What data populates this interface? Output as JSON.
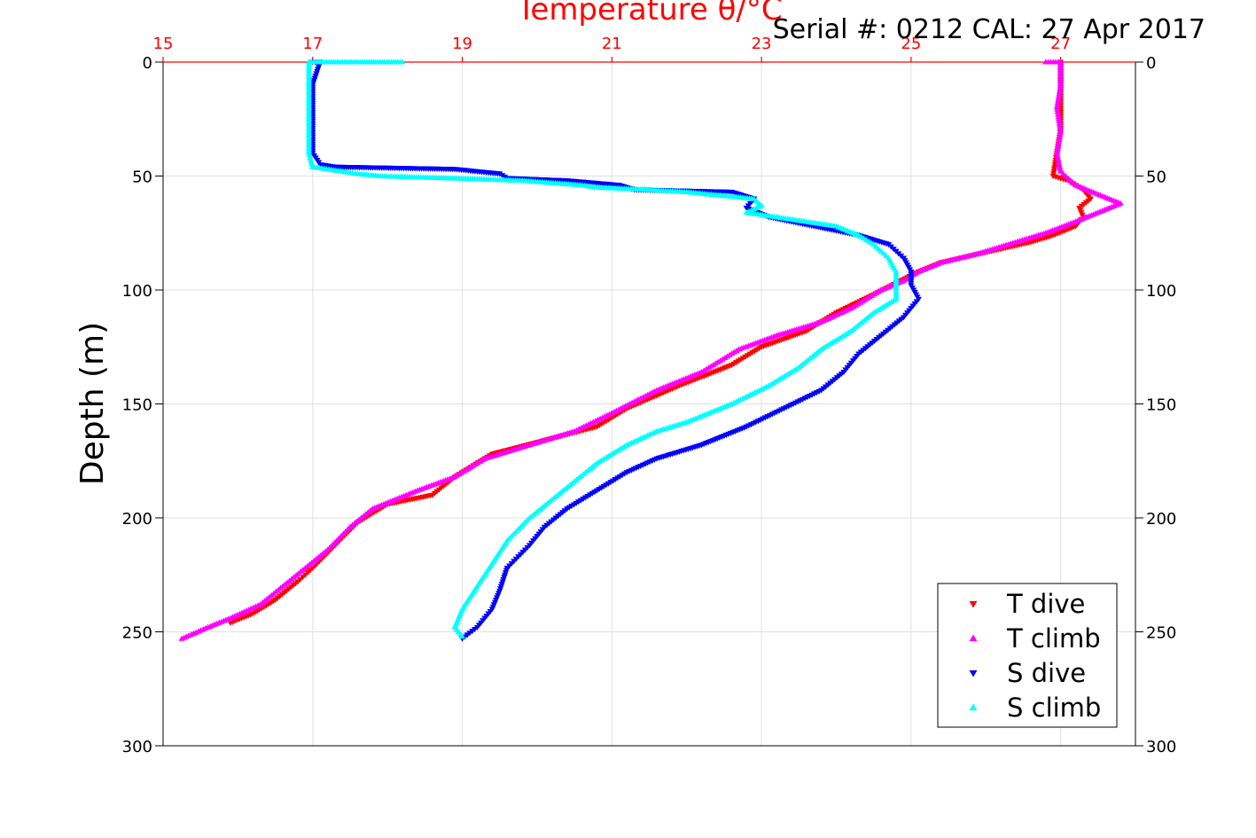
{
  "chart_data": {
    "type": "scatter",
    "title": "Temperature θ/°C",
    "header": "Serial #: 0212  CAL: 27 Apr 2017",
    "xlabel_top": "Temperature θ/°C",
    "ylabel": "Depth (m)",
    "xlim": [
      15,
      28
    ],
    "ylim": [
      0,
      300
    ],
    "y_reversed": true,
    "x_ticks": [
      15,
      17,
      19,
      21,
      23,
      25,
      27
    ],
    "x_tick_labels": [
      "15",
      "17",
      "19",
      "21",
      "23",
      "25",
      "27"
    ],
    "y_ticks": [
      0,
      50,
      100,
      150,
      200,
      250,
      300
    ],
    "y_tick_labels": [
      "0",
      "50",
      "100",
      "150",
      "200",
      "250",
      "300"
    ],
    "grid": true,
    "legend_position": "bottom-right",
    "series": [
      {
        "name": "T dive",
        "marker": "triangle-down",
        "color": "#ff0000",
        "points": [
          [
            27.0,
            0
          ],
          [
            27.0,
            10
          ],
          [
            27.0,
            20
          ],
          [
            27.0,
            30
          ],
          [
            26.95,
            40
          ],
          [
            26.9,
            50
          ],
          [
            27.1,
            52
          ],
          [
            27.3,
            56
          ],
          [
            27.4,
            60
          ],
          [
            27.25,
            64
          ],
          [
            27.3,
            68
          ],
          [
            27.2,
            72
          ],
          [
            26.9,
            76
          ],
          [
            26.6,
            79
          ],
          [
            26.2,
            82
          ],
          [
            25.8,
            85
          ],
          [
            25.4,
            88
          ],
          [
            25.1,
            92
          ],
          [
            24.8,
            97
          ],
          [
            24.5,
            102
          ],
          [
            24.0,
            110
          ],
          [
            23.6,
            118
          ],
          [
            23.0,
            125
          ],
          [
            22.6,
            133
          ],
          [
            21.9,
            142
          ],
          [
            21.2,
            152
          ],
          [
            20.8,
            160
          ],
          [
            20.1,
            166
          ],
          [
            19.4,
            172
          ],
          [
            18.9,
            182
          ],
          [
            18.6,
            190
          ],
          [
            18.0,
            194
          ],
          [
            17.6,
            202
          ],
          [
            17.3,
            212
          ],
          [
            17.0,
            222
          ],
          [
            16.8,
            228
          ],
          [
            16.5,
            236
          ],
          [
            16.2,
            242
          ],
          [
            15.9,
            246
          ]
        ]
      },
      {
        "name": "T climb",
        "marker": "triangle-up",
        "color": "#ff00ff",
        "points": [
          [
            26.8,
            0
          ],
          [
            27.0,
            0
          ],
          [
            27.0,
            10
          ],
          [
            26.95,
            20
          ],
          [
            27.0,
            30
          ],
          [
            26.95,
            40
          ],
          [
            27.0,
            48
          ],
          [
            27.2,
            54
          ],
          [
            27.5,
            58
          ],
          [
            27.8,
            62
          ],
          [
            27.5,
            66
          ],
          [
            27.2,
            70
          ],
          [
            26.8,
            75
          ],
          [
            26.3,
            80
          ],
          [
            25.9,
            84
          ],
          [
            25.4,
            88
          ],
          [
            25.1,
            92
          ],
          [
            24.9,
            96
          ],
          [
            24.6,
            100
          ],
          [
            24.2,
            108
          ],
          [
            23.8,
            114
          ],
          [
            23.2,
            120
          ],
          [
            22.7,
            126
          ],
          [
            22.2,
            136
          ],
          [
            21.6,
            144
          ],
          [
            21.0,
            154
          ],
          [
            20.5,
            162
          ],
          [
            19.9,
            168
          ],
          [
            19.3,
            174
          ],
          [
            18.9,
            182
          ],
          [
            18.4,
            188
          ],
          [
            17.8,
            196
          ],
          [
            17.5,
            204
          ],
          [
            17.2,
            214
          ],
          [
            16.9,
            222
          ],
          [
            16.6,
            230
          ],
          [
            16.3,
            238
          ],
          [
            15.9,
            244
          ],
          [
            15.6,
            248
          ],
          [
            15.25,
            253
          ]
        ]
      },
      {
        "name": "S dive",
        "marker": "triangle-down",
        "color": "#0000ff",
        "points": [
          [
            17.0,
            0
          ],
          [
            17.1,
            0
          ],
          [
            17.0,
            10
          ],
          [
            17.0,
            20
          ],
          [
            17.0,
            30
          ],
          [
            17.0,
            40
          ],
          [
            17.1,
            45
          ],
          [
            17.3,
            46
          ],
          [
            18.9,
            47
          ],
          [
            19.5,
            49
          ],
          [
            19.6,
            51
          ],
          [
            20.4,
            52
          ],
          [
            21.1,
            54
          ],
          [
            21.3,
            56
          ],
          [
            22.6,
            57
          ],
          [
            22.9,
            60
          ],
          [
            22.8,
            64
          ],
          [
            23.1,
            68
          ],
          [
            23.7,
            72
          ],
          [
            24.3,
            76
          ],
          [
            24.7,
            80
          ],
          [
            24.9,
            86
          ],
          [
            25.0,
            92
          ],
          [
            25.0,
            98
          ],
          [
            25.1,
            104
          ],
          [
            24.9,
            112
          ],
          [
            24.6,
            120
          ],
          [
            24.3,
            128
          ],
          [
            24.1,
            136
          ],
          [
            23.8,
            144
          ],
          [
            23.3,
            152
          ],
          [
            22.8,
            160
          ],
          [
            22.2,
            168
          ],
          [
            21.6,
            174
          ],
          [
            21.2,
            180
          ],
          [
            20.8,
            188
          ],
          [
            20.4,
            196
          ],
          [
            20.1,
            204
          ],
          [
            19.9,
            212
          ],
          [
            19.6,
            222
          ],
          [
            19.5,
            232
          ],
          [
            19.4,
            240
          ],
          [
            19.2,
            248
          ],
          [
            19.0,
            253
          ]
        ]
      },
      {
        "name": "S climb",
        "marker": "triangle-up",
        "color": "#00ffff",
        "points": [
          [
            18.2,
            0
          ],
          [
            16.95,
            0
          ],
          [
            16.95,
            10
          ],
          [
            16.95,
            20
          ],
          [
            16.95,
            30
          ],
          [
            16.95,
            40
          ],
          [
            17.0,
            46
          ],
          [
            17.4,
            48
          ],
          [
            17.6,
            49
          ],
          [
            17.9,
            50
          ],
          [
            18.9,
            51
          ],
          [
            19.8,
            52
          ],
          [
            20.6,
            54
          ],
          [
            20.8,
            55
          ],
          [
            21.5,
            56
          ],
          [
            22.0,
            57
          ],
          [
            22.9,
            60
          ],
          [
            23.0,
            63
          ],
          [
            22.8,
            66
          ],
          [
            23.2,
            68
          ],
          [
            23.6,
            70
          ],
          [
            24.0,
            72
          ],
          [
            24.3,
            76
          ],
          [
            24.5,
            80
          ],
          [
            24.7,
            86
          ],
          [
            24.8,
            92
          ],
          [
            24.8,
            98
          ],
          [
            24.8,
            104
          ],
          [
            24.5,
            110
          ],
          [
            24.2,
            118
          ],
          [
            23.8,
            126
          ],
          [
            23.5,
            134
          ],
          [
            23.1,
            142
          ],
          [
            22.6,
            150
          ],
          [
            22.0,
            158
          ],
          [
            21.6,
            162
          ],
          [
            21.2,
            168
          ],
          [
            20.8,
            176
          ],
          [
            20.5,
            184
          ],
          [
            20.2,
            192
          ],
          [
            19.9,
            200
          ],
          [
            19.6,
            210
          ],
          [
            19.4,
            220
          ],
          [
            19.2,
            230
          ],
          [
            19.0,
            240
          ],
          [
            18.9,
            248
          ],
          [
            19.0,
            252
          ]
        ]
      }
    ]
  }
}
